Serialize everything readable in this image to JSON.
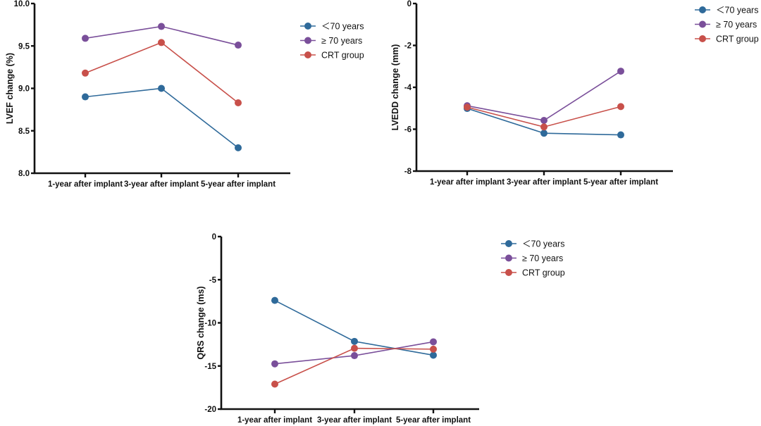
{
  "chart_data": [
    {
      "type": "line",
      "id": "lvef",
      "title": "",
      "xlabel": "",
      "ylabel": "LVEF change (%)",
      "categories": [
        "1-year after implant",
        "3-year after implant",
        "5-year after implant"
      ],
      "ylim": [
        8.0,
        10.0
      ],
      "yticks": [
        8.0,
        8.5,
        9.0,
        9.5,
        10.0
      ],
      "ytick_labels": [
        "8.0",
        "8.5",
        "9.0",
        "9.5",
        "10.0"
      ],
      "grid": false,
      "legend_position": "right",
      "series": [
        {
          "name": "＜70 years",
          "color": "#2f6a9a",
          "values": [
            8.9,
            9.0,
            8.3
          ]
        },
        {
          "name": "≥ 70 years",
          "color": "#7a4f9a",
          "values": [
            9.59,
            9.73,
            9.51
          ]
        },
        {
          "name": "CRT group",
          "color": "#c8504a",
          "values": [
            9.18,
            9.54,
            8.83
          ]
        }
      ]
    },
    {
      "type": "line",
      "id": "lvedd",
      "title": "",
      "xlabel": "",
      "ylabel": "LVEDD change (mm)",
      "categories": [
        "1-year after implant",
        "3-year after implant",
        "5-year after implant"
      ],
      "ylim": [
        -8,
        0
      ],
      "yticks": [
        -8,
        -6,
        -4,
        -2,
        0
      ],
      "ytick_labels": [
        "-8",
        "-6",
        "-4",
        "-2",
        "0"
      ],
      "grid": false,
      "legend_position": "top-right",
      "series": [
        {
          "name": "＜70 years",
          "color": "#2f6a9a",
          "values": [
            -5.01,
            -6.19,
            -6.27
          ]
        },
        {
          "name": "≥ 70 years",
          "color": "#7a4f9a",
          "values": [
            -4.88,
            -5.58,
            -3.23
          ]
        },
        {
          "name": "CRT group",
          "color": "#c8504a",
          "values": [
            -4.95,
            -5.89,
            -4.92
          ]
        }
      ]
    },
    {
      "type": "line",
      "id": "qrs",
      "title": "",
      "xlabel": "",
      "ylabel": "QRS change (ms)",
      "categories": [
        "1-year after implant",
        "3-year after implant",
        "5-year after implant"
      ],
      "ylim": [
        -20,
        0
      ],
      "yticks": [
        -20,
        -15,
        -10,
        -5,
        0
      ],
      "ytick_labels": [
        "-20",
        "-15",
        "-10",
        "-5",
        "0"
      ],
      "grid": false,
      "legend_position": "right",
      "series": [
        {
          "name": "＜70 years",
          "color": "#2f6a9a",
          "values": [
            -7.4,
            -12.15,
            -13.75
          ]
        },
        {
          "name": "≥ 70 years",
          "color": "#7a4f9a",
          "values": [
            -14.75,
            -13.8,
            -12.2
          ]
        },
        {
          "name": "CRT group",
          "color": "#c8504a",
          "values": [
            -17.1,
            -12.95,
            -13.05
          ]
        }
      ]
    }
  ]
}
